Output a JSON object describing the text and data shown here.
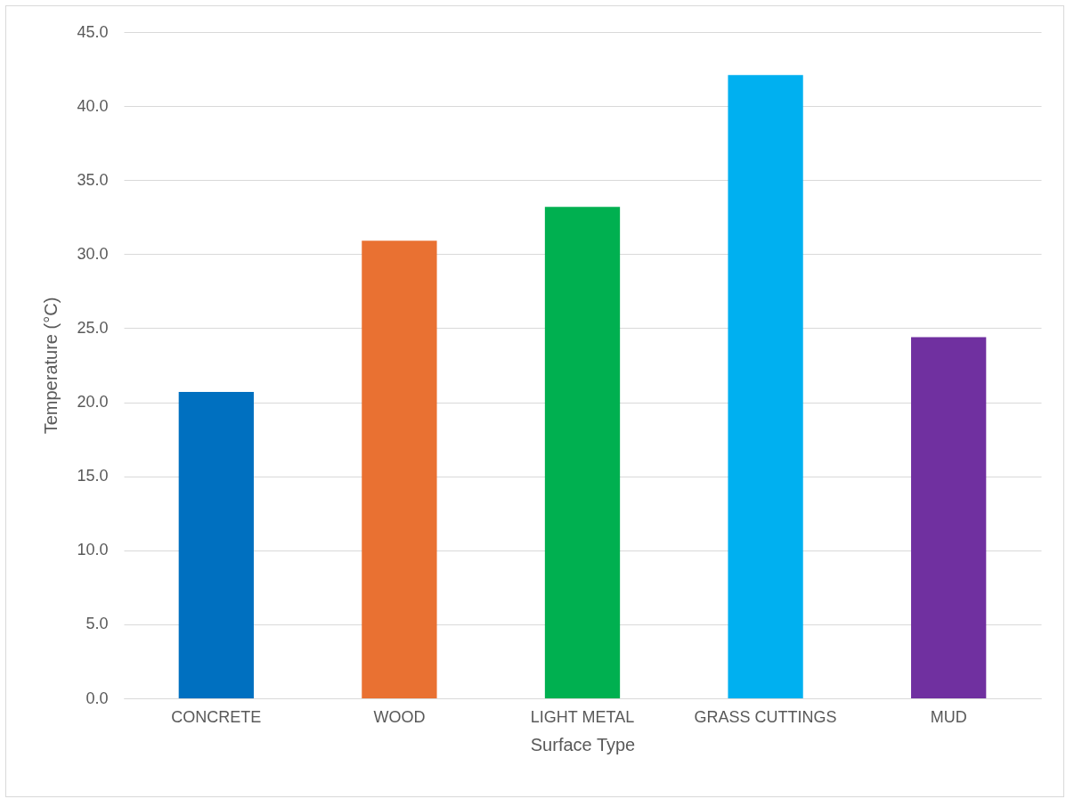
{
  "chart_data": {
    "type": "bar",
    "xlabel": "Surface Type",
    "ylabel": "Temperature (°C)",
    "categories": [
      "CONCRETE",
      "WOOD",
      "LIGHT METAL",
      "GRASS CUTTINGS",
      "MUD"
    ],
    "values": [
      20.7,
      30.9,
      33.2,
      42.1,
      24.4
    ],
    "colors": [
      "#0070c0",
      "#e97132",
      "#00b050",
      "#00b0f0",
      "#7030a0"
    ],
    "ylim": [
      0,
      45
    ],
    "yticks": [
      {
        "value": 0,
        "label": "0.0"
      },
      {
        "value": 5,
        "label": "5.0"
      },
      {
        "value": 10,
        "label": "10.0"
      },
      {
        "value": 15,
        "label": "15.0"
      },
      {
        "value": 20,
        "label": "20.0"
      },
      {
        "value": 25,
        "label": "25.0"
      },
      {
        "value": 30,
        "label": "30.0"
      },
      {
        "value": 35,
        "label": "35.0"
      },
      {
        "value": 40,
        "label": "40.0"
      },
      {
        "value": 45,
        "label": "45.0"
      }
    ],
    "grid": "y"
  }
}
